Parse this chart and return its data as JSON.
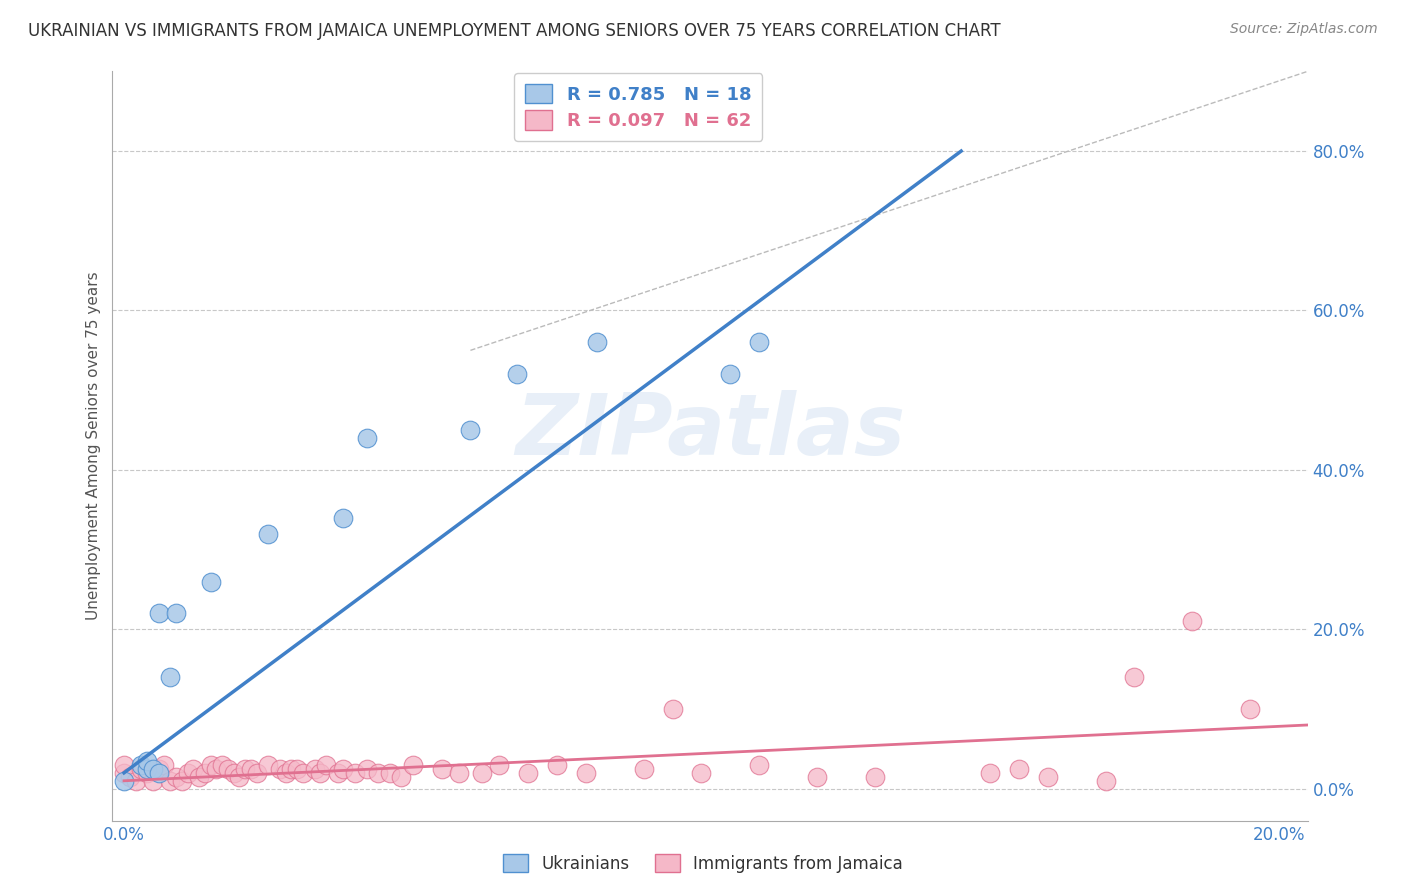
{
  "title": "UKRAINIAN VS IMMIGRANTS FROM JAMAICA UNEMPLOYMENT AMONG SENIORS OVER 75 YEARS CORRELATION CHART",
  "source": "Source: ZipAtlas.com",
  "ylabel": "Unemployment Among Seniors over 75 years",
  "y_tick_labels": [
    "0.0%",
    "20.0%",
    "40.0%",
    "60.0%",
    "80.0%"
  ],
  "y_tick_vals": [
    0.0,
    0.2,
    0.4,
    0.6,
    0.8
  ],
  "x_tick_labels": [
    "0.0%",
    "20.0%"
  ],
  "x_tick_vals": [
    0.0,
    0.2
  ],
  "xlim": [
    -0.002,
    0.205
  ],
  "ylim": [
    -0.04,
    0.9
  ],
  "blue_R": 0.785,
  "blue_N": 18,
  "pink_R": 0.097,
  "pink_N": 62,
  "blue_label": "Ukrainians",
  "pink_label": "Immigrants from Jamaica",
  "blue_color": "#a8c8e8",
  "pink_color": "#f5b8c8",
  "blue_edge_color": "#5090d0",
  "pink_edge_color": "#e07090",
  "blue_line_color": "#4080c8",
  "pink_line_color": "#e07090",
  "background_color": "#ffffff",
  "grid_color": "#c8c8c8",
  "title_color": "#333333",
  "watermark": "ZIPatlas",
  "blue_scatter_x": [
    0.0,
    0.003,
    0.004,
    0.004,
    0.005,
    0.006,
    0.006,
    0.008,
    0.009,
    0.015,
    0.025,
    0.038,
    0.042,
    0.06,
    0.068,
    0.082,
    0.105,
    0.11
  ],
  "blue_scatter_y": [
    0.01,
    0.03,
    0.025,
    0.035,
    0.025,
    0.02,
    0.22,
    0.14,
    0.22,
    0.26,
    0.32,
    0.34,
    0.44,
    0.45,
    0.52,
    0.56,
    0.52,
    0.56
  ],
  "pink_scatter_x": [
    0.0,
    0.0,
    0.001,
    0.002,
    0.003,
    0.004,
    0.005,
    0.006,
    0.007,
    0.008,
    0.009,
    0.01,
    0.011,
    0.012,
    0.013,
    0.014,
    0.015,
    0.016,
    0.017,
    0.018,
    0.019,
    0.02,
    0.021,
    0.022,
    0.023,
    0.025,
    0.027,
    0.028,
    0.029,
    0.03,
    0.031,
    0.033,
    0.034,
    0.035,
    0.037,
    0.038,
    0.04,
    0.042,
    0.044,
    0.046,
    0.048,
    0.05,
    0.055,
    0.058,
    0.062,
    0.065,
    0.07,
    0.075,
    0.08,
    0.09,
    0.095,
    0.1,
    0.11,
    0.12,
    0.13,
    0.15,
    0.155,
    0.16,
    0.17,
    0.175,
    0.185,
    0.195
  ],
  "pink_scatter_y": [
    0.02,
    0.03,
    0.015,
    0.01,
    0.025,
    0.02,
    0.01,
    0.025,
    0.03,
    0.01,
    0.015,
    0.01,
    0.02,
    0.025,
    0.015,
    0.02,
    0.03,
    0.025,
    0.03,
    0.025,
    0.02,
    0.015,
    0.025,
    0.025,
    0.02,
    0.03,
    0.025,
    0.02,
    0.025,
    0.025,
    0.02,
    0.025,
    0.02,
    0.03,
    0.02,
    0.025,
    0.02,
    0.025,
    0.02,
    0.02,
    0.015,
    0.03,
    0.025,
    0.02,
    0.02,
    0.03,
    0.02,
    0.03,
    0.02,
    0.025,
    0.1,
    0.02,
    0.03,
    0.015,
    0.015,
    0.02,
    0.025,
    0.015,
    0.01,
    0.14,
    0.21,
    0.1
  ],
  "blue_line_x": [
    0.0,
    0.145
  ],
  "blue_line_y": [
    0.02,
    0.8
  ],
  "pink_line_x": [
    0.0,
    0.205
  ],
  "pink_line_y": [
    0.01,
    0.08
  ],
  "dash_line_x": [
    0.06,
    0.205
  ],
  "dash_line_y": [
    0.55,
    0.9
  ]
}
